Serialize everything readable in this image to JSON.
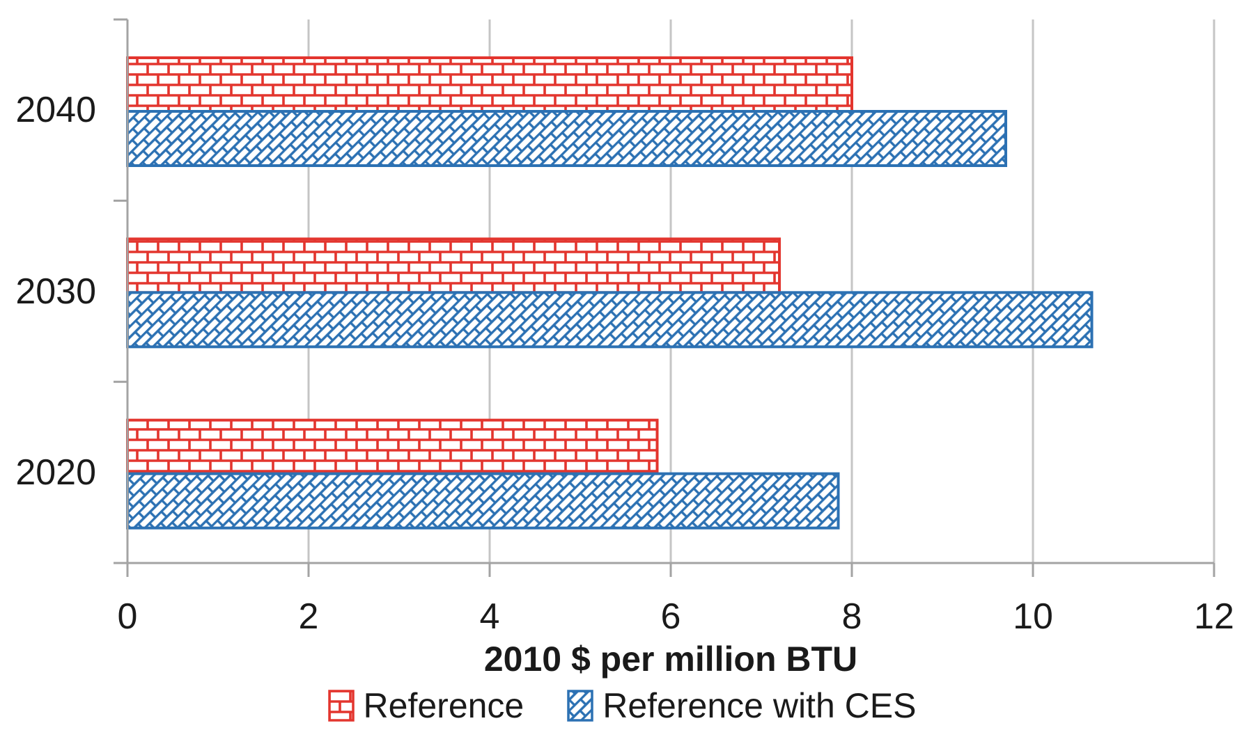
{
  "chart_data": {
    "type": "bar",
    "orientation": "horizontal",
    "title": "",
    "xlabel": "2010 $ per million BTU",
    "ylabel": "",
    "categories": [
      "2040",
      "2030",
      "2020"
    ],
    "series": [
      {
        "name": "Reference",
        "pattern": "brick",
        "color": "#E3352E",
        "values": [
          8.0,
          7.2,
          5.85
        ]
      },
      {
        "name": "Reference with CES",
        "pattern": "diagonal-brick",
        "color": "#2C71B3",
        "values": [
          9.7,
          10.65,
          7.85
        ]
      }
    ],
    "x_ticks": [
      0,
      2,
      4,
      6,
      8,
      10,
      12
    ],
    "xlim": [
      0,
      12
    ],
    "grid": "vertical-major",
    "legend_position": "bottom"
  },
  "colors": {
    "axis_line": "#A3A3A3",
    "gridline": "#C5C5C5",
    "text": "#1a1a1a",
    "background": "#ffffff"
  }
}
